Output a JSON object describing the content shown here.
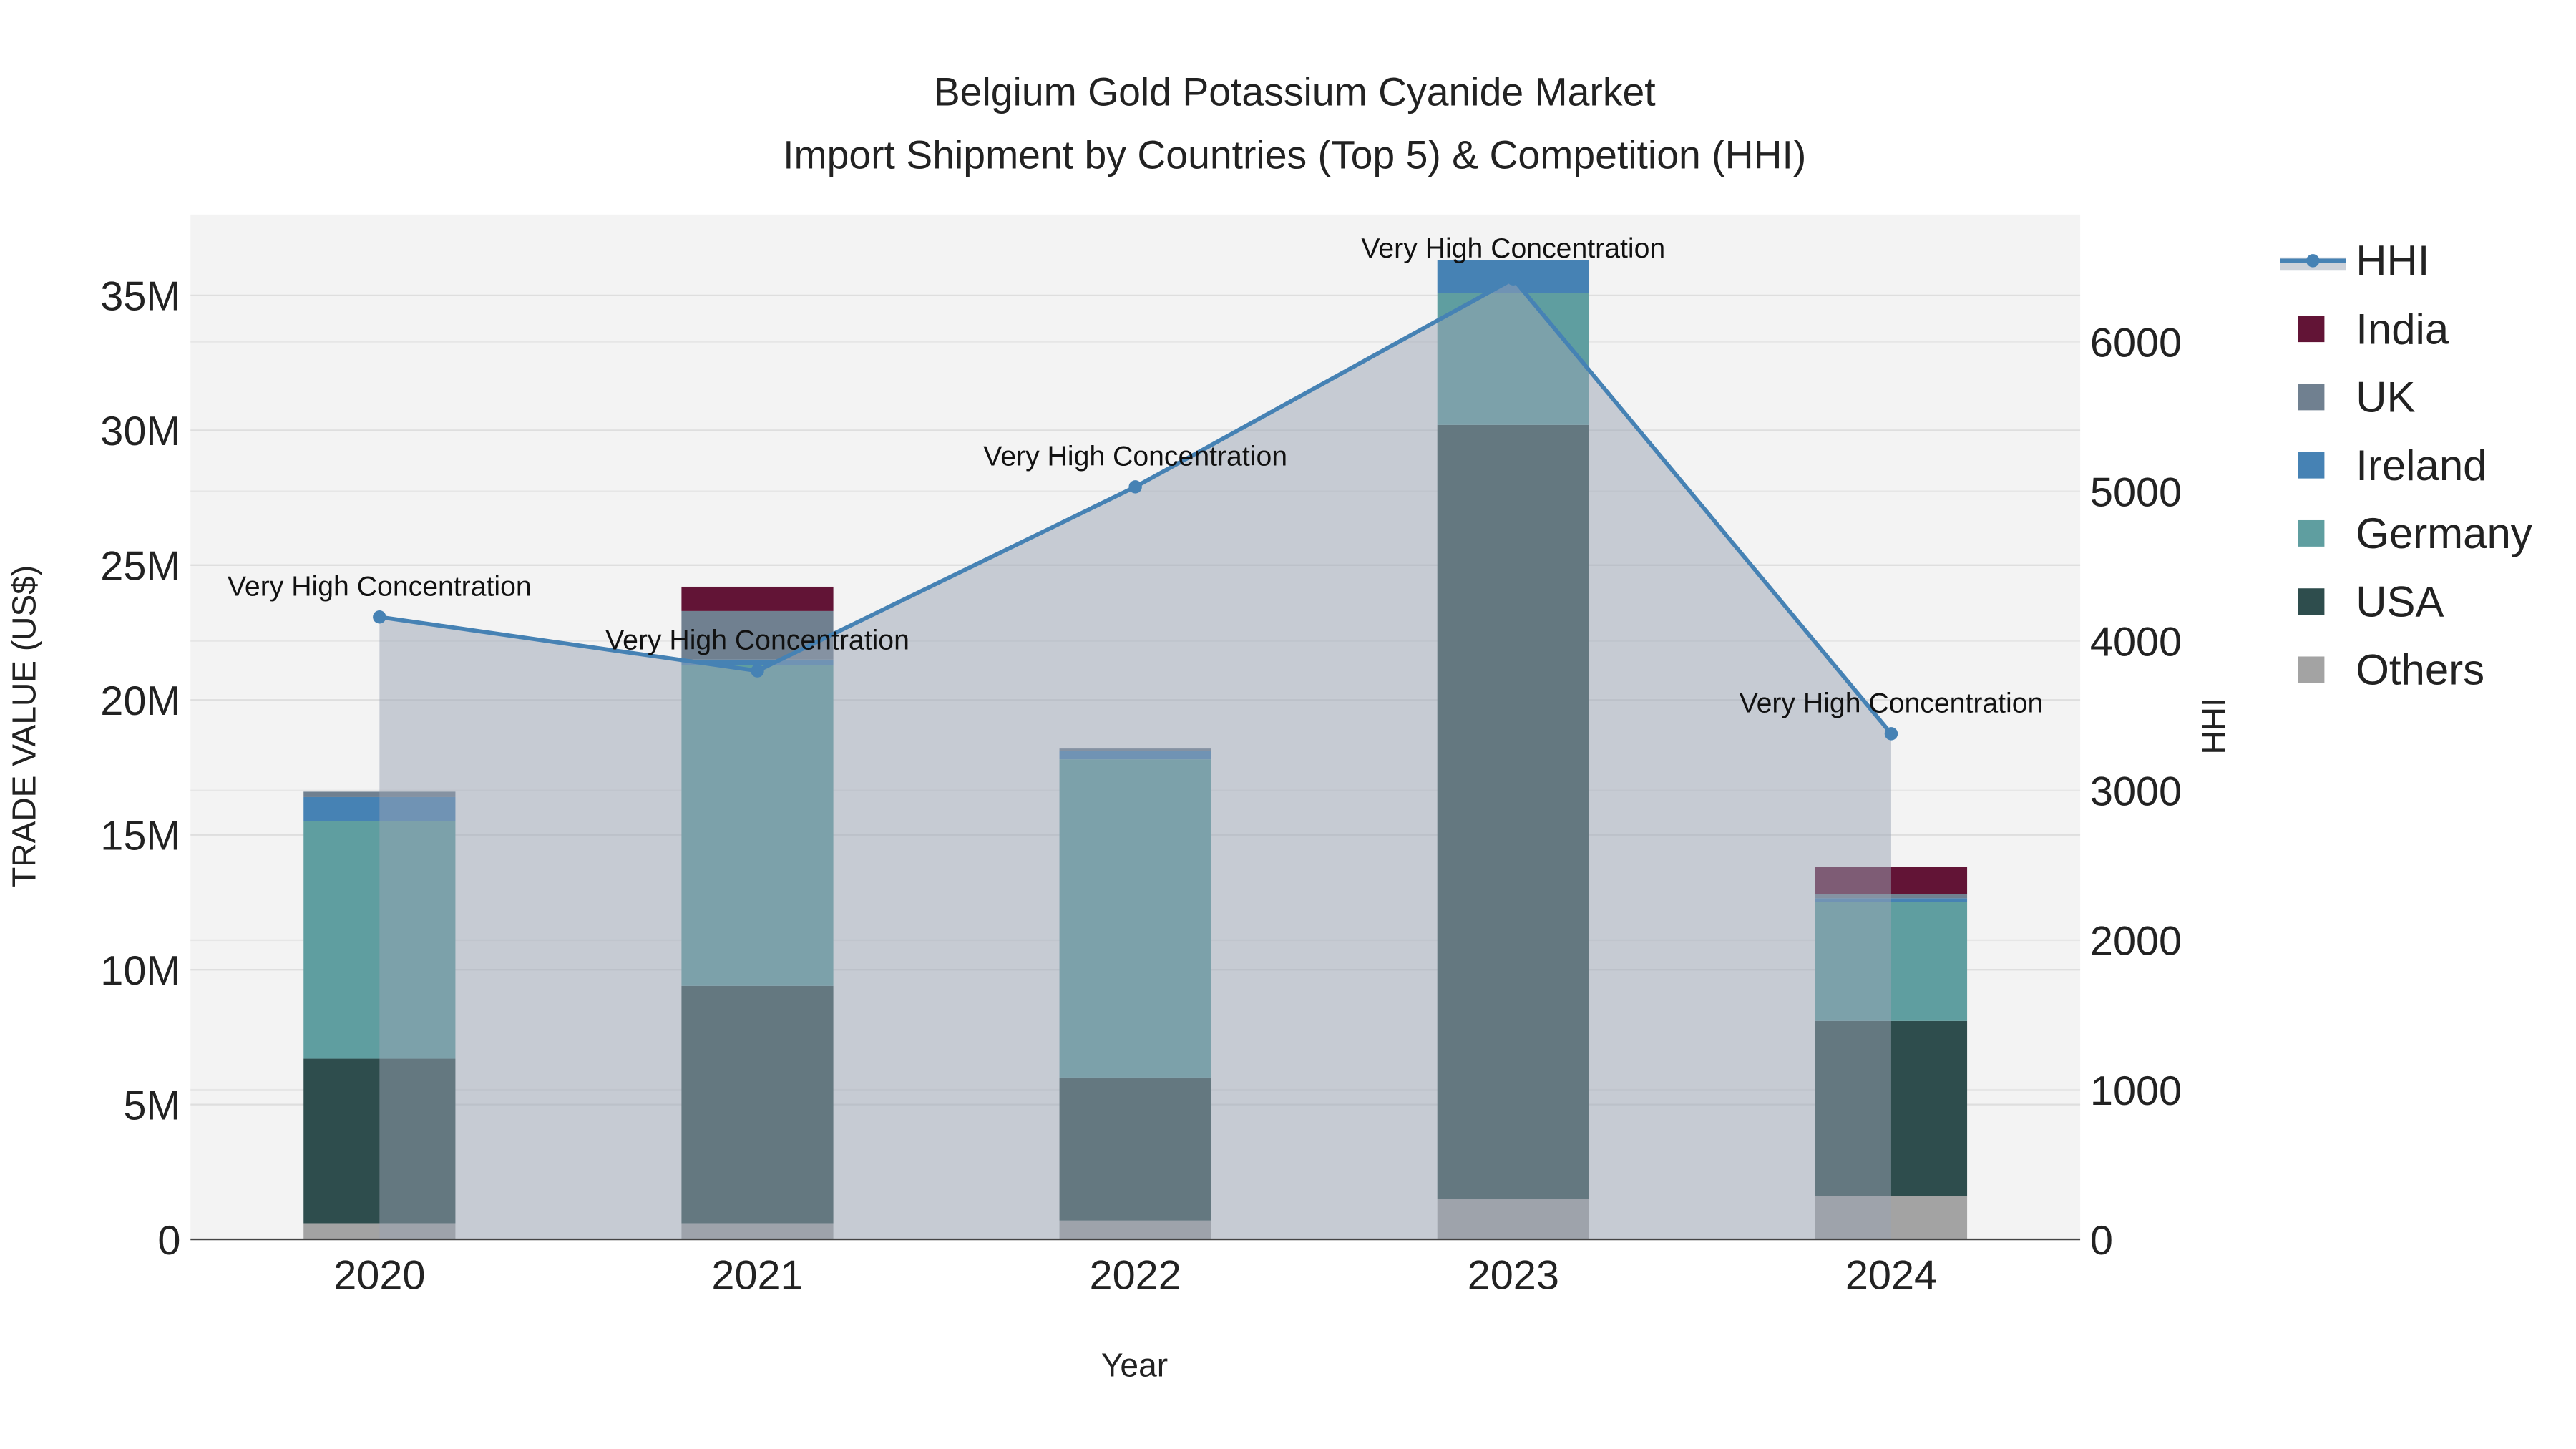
{
  "chart_data": {
    "type": "bar",
    "title": "Belgium Gold Potassium Cyanide Market",
    "subtitle": "Import Shipment by Countries (Top 5) & Competition (HHI)",
    "xlabel": "Year",
    "ylabel": "TRADE VALUE (US$)",
    "y2label": "HHI",
    "categories": [
      "2020",
      "2021",
      "2022",
      "2023",
      "2024"
    ],
    "ylim": [
      0,
      38
    ],
    "y_unit": "M",
    "y_ticks": [
      0,
      5,
      10,
      15,
      20,
      25,
      30,
      35
    ],
    "y_tick_labels": [
      "0",
      "5M",
      "10M",
      "15M",
      "20M",
      "25M",
      "30M",
      "35M"
    ],
    "y2lim": [
      0,
      6850
    ],
    "y2_ticks": [
      0,
      1000,
      2000,
      3000,
      4000,
      5000,
      6000
    ],
    "y2_tick_labels": [
      "0",
      "1000",
      "2000",
      "3000",
      "4000",
      "5000",
      "6000"
    ],
    "stacked": true,
    "series": [
      {
        "name": "Others",
        "color": "#a3a3a3",
        "values": [
          0.6,
          0.6,
          0.7,
          1.5,
          1.6
        ]
      },
      {
        "name": "USA",
        "color": "#2e4d4d",
        "values": [
          6.1,
          8.8,
          5.3,
          28.7,
          6.5
        ]
      },
      {
        "name": "Germany",
        "color": "#5f9ea0",
        "values": [
          8.8,
          11.9,
          11.8,
          4.9,
          4.4
        ]
      },
      {
        "name": "Ireland",
        "color": "#4682b4",
        "values": [
          0.9,
          0.2,
          0.3,
          1.2,
          0.15
        ]
      },
      {
        "name": "UK",
        "color": "#708090",
        "values": [
          0.2,
          1.8,
          0.1,
          0,
          0.15
        ]
      },
      {
        "name": "India",
        "color": "#621436",
        "values": [
          0,
          0.9,
          0,
          0,
          1.0
        ]
      }
    ],
    "hhi": {
      "name": "HHI",
      "color": "#4682b4",
      "values": [
        4160,
        3800,
        5030,
        6420,
        3380
      ],
      "annotations": [
        "Very High Concentration",
        "Very High Concentration",
        "Very High Concentration",
        "Very High Concentration",
        "Very High Concentration"
      ]
    },
    "legend_order": [
      "HHI",
      "India",
      "UK",
      "Ireland",
      "Germany",
      "USA",
      "Others"
    ],
    "legend_placement": "right",
    "grid": true
  }
}
